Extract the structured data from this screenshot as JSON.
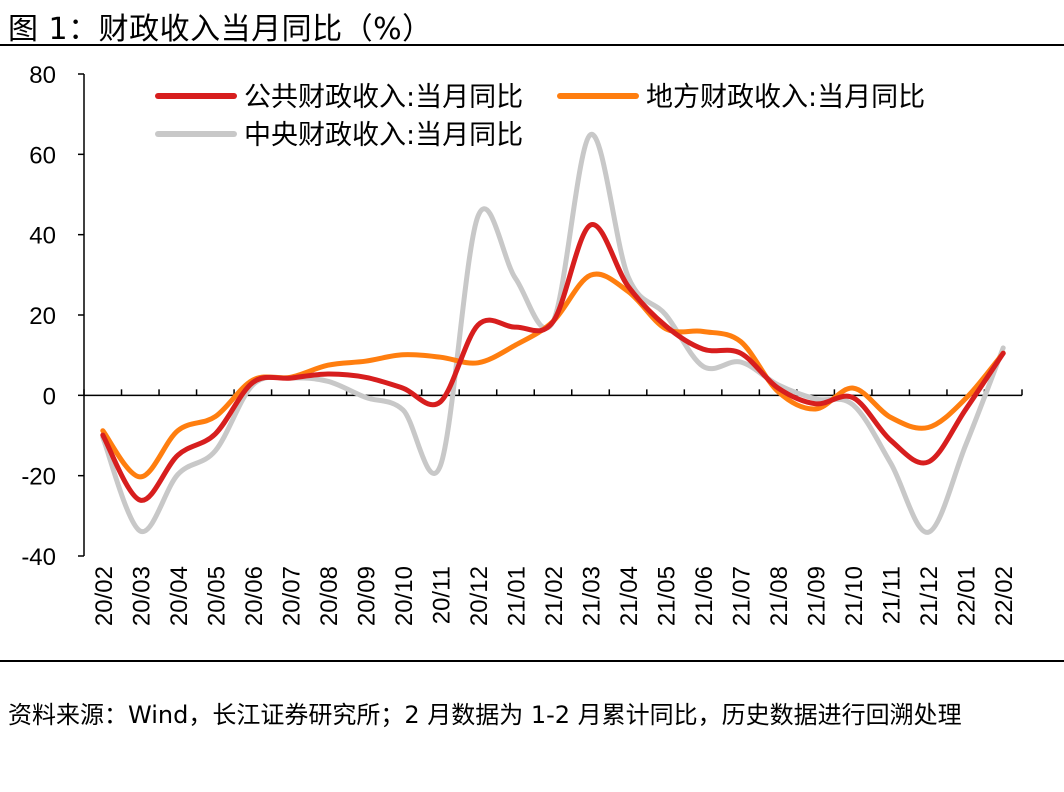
{
  "figure": {
    "title": "图 1：财政收入当月同比（%）",
    "source_note": "资料来源：Wind，长江证券研究所；2 月数据为 1-2 月累计同比，历史数据进行回溯处理"
  },
  "chart_data": {
    "type": "line",
    "title": "图 1：财政收入当月同比（%）",
    "xlabel": "",
    "ylabel": "",
    "ylim": [
      -40,
      80
    ],
    "yticks": [
      -40,
      -20,
      0,
      20,
      40,
      60,
      80
    ],
    "grid": false,
    "legend_position": "top",
    "categories": [
      "20/02",
      "20/03",
      "20/04",
      "20/05",
      "20/06",
      "20/07",
      "20/08",
      "20/09",
      "20/10",
      "20/11",
      "20/12",
      "21/01",
      "21/02",
      "21/03",
      "21/04",
      "21/05",
      "21/06",
      "21/07",
      "21/08",
      "21/09",
      "21/10",
      "21/11",
      "21/12",
      "22/01",
      "22/02"
    ],
    "series": [
      {
        "name": "公共财政收入:当月同比",
        "color": "#d71e1e",
        "values": [
          -9.9,
          -26.1,
          -14.9,
          -9.6,
          3.2,
          4.3,
          5.3,
          4.5,
          1.8,
          -1.6,
          17.5,
          17.0,
          18.3,
          42.4,
          27.2,
          17.3,
          11.5,
          10.5,
          1.8,
          -2.1,
          -0.6,
          -11.2,
          -16.6,
          -3.5,
          10.5
        ]
      },
      {
        "name": "地方财政收入:当月同比",
        "color": "#ff7e0f",
        "values": [
          -8.8,
          -20.3,
          -8.8,
          -5.3,
          3.8,
          4.5,
          7.5,
          8.5,
          10.1,
          9.5,
          8.1,
          12.5,
          18.4,
          29.9,
          25.9,
          16.6,
          15.9,
          13.4,
          0.9,
          -3.4,
          1.8,
          -5.5,
          -8.0,
          -0.8,
          10.5
        ]
      },
      {
        "name": "中央财政收入:当月同比",
        "color": "#c8c8c8",
        "values": [
          -10.5,
          -33.8,
          -19.7,
          -13.8,
          2.6,
          4.3,
          3.5,
          -0.5,
          -3.6,
          -17.5,
          44.6,
          29.1,
          18.3,
          64.9,
          29.6,
          20.1,
          7.2,
          8.3,
          2.6,
          -0.9,
          -2.4,
          -16.9,
          -34.1,
          -12.4,
          11.8
        ]
      }
    ]
  }
}
